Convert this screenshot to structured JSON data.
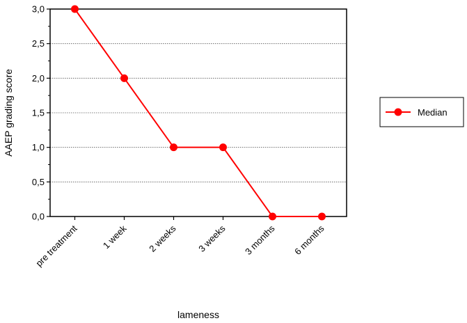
{
  "chart_data": {
    "type": "line",
    "title": "",
    "xlabel": "lameness",
    "ylabel": "AAEP grading score",
    "categories": [
      "pre treatment",
      "1 week",
      "2 weeks",
      "3 weeks",
      "3 months",
      "6 months"
    ],
    "series": [
      {
        "name": "Median",
        "values": [
          3.0,
          2.0,
          1.0,
          1.0,
          0.0,
          0.0
        ],
        "color": "#ff0000"
      }
    ],
    "ylim": [
      0,
      3
    ],
    "yticks": [
      "0,0",
      "0,5",
      "1,0",
      "1,5",
      "2,0",
      "2,5",
      "3,0"
    ],
    "grid": "horizontal dotted",
    "legend_position": "right"
  }
}
